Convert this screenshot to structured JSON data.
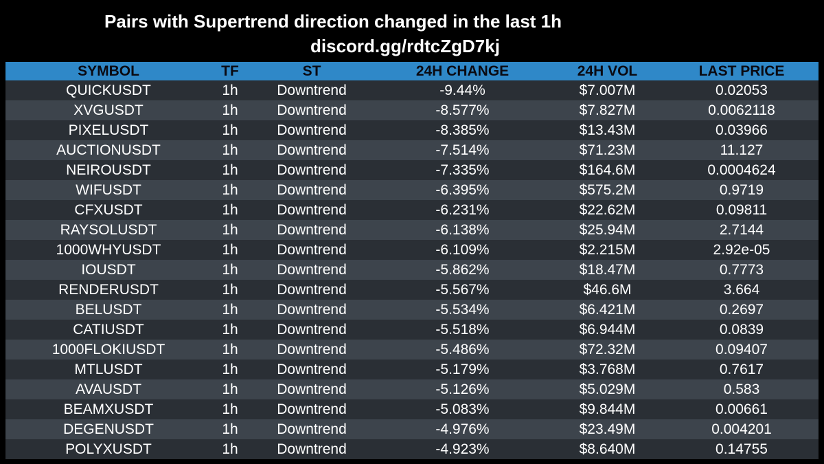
{
  "title": {
    "line1": "Pairs with Supertrend direction changed in the last 1h",
    "line2": "discord.gg/rdtcZgD7kj"
  },
  "colors": {
    "background": "#000000",
    "header_bg": "#2f88c8",
    "row_dark": "#2a2f35",
    "row_light": "#3d444c",
    "text": "#ffffff"
  },
  "table": {
    "headers": [
      "SYMBOL",
      "TF",
      "ST",
      "24H CHANGE",
      "24H VOL",
      "LAST PRICE"
    ],
    "rows": [
      [
        "QUICKUSDT",
        "1h",
        "Downtrend",
        "-9.44%",
        "$7.007M",
        "0.02053"
      ],
      [
        "XVGUSDT",
        "1h",
        "Downtrend",
        "-8.577%",
        "$7.827M",
        "0.0062118"
      ],
      [
        "PIXELUSDT",
        "1h",
        "Downtrend",
        "-8.385%",
        "$13.43M",
        "0.03966"
      ],
      [
        "AUCTIONUSDT",
        "1h",
        "Downtrend",
        "-7.514%",
        "$71.23M",
        "11.127"
      ],
      [
        "NEIROUSDT",
        "1h",
        "Downtrend",
        "-7.335%",
        "$164.6M",
        "0.0004624"
      ],
      [
        "WIFUSDT",
        "1h",
        "Downtrend",
        "-6.395%",
        "$575.2M",
        "0.9719"
      ],
      [
        "CFXUSDT",
        "1h",
        "Downtrend",
        "-6.231%",
        "$22.62M",
        "0.09811"
      ],
      [
        "RAYSOLUSDT",
        "1h",
        "Downtrend",
        "-6.138%",
        "$25.94M",
        "2.7144"
      ],
      [
        "1000WHYUSDT",
        "1h",
        "Downtrend",
        "-6.109%",
        "$2.215M",
        "2.92e-05"
      ],
      [
        "IOUSDT",
        "1h",
        "Downtrend",
        "-5.862%",
        "$18.47M",
        "0.7773"
      ],
      [
        "RENDERUSDT",
        "1h",
        "Downtrend",
        "-5.567%",
        "$46.6M",
        "3.664"
      ],
      [
        "BELUSDT",
        "1h",
        "Downtrend",
        "-5.534%",
        "$6.421M",
        "0.2697"
      ],
      [
        "CATIUSDT",
        "1h",
        "Downtrend",
        "-5.518%",
        "$6.944M",
        "0.0839"
      ],
      [
        "1000FLOKIUSDT",
        "1h",
        "Downtrend",
        "-5.486%",
        "$72.32M",
        "0.09407"
      ],
      [
        "MTLUSDT",
        "1h",
        "Downtrend",
        "-5.179%",
        "$3.768M",
        "0.7617"
      ],
      [
        "AVAUSDT",
        "1h",
        "Downtrend",
        "-5.126%",
        "$5.029M",
        "0.583"
      ],
      [
        "BEAMXUSDT",
        "1h",
        "Downtrend",
        "-5.083%",
        "$9.844M",
        "0.00661"
      ],
      [
        "DEGENUSDT",
        "1h",
        "Downtrend",
        "-4.976%",
        "$23.49M",
        "0.004201"
      ],
      [
        "POLYXUSDT",
        "1h",
        "Downtrend",
        "-4.923%",
        "$8.640M",
        "0.14755"
      ]
    ]
  }
}
